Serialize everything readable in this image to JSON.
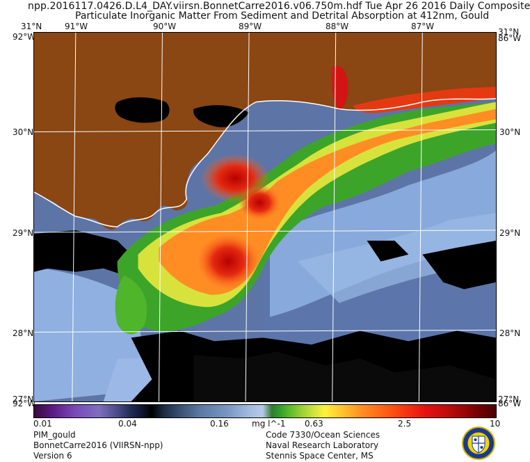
{
  "header": {
    "line1": "npp.2016117.0426.D.L4_DAY.viirsn.BonnetCarre2016.v06.750m.hdf     Tue Apr 26 2016 Daily Composite",
    "line2": "Particulate Inorganic Matter From Sediment and Detrital Absorption at 412nm, Gould"
  },
  "map": {
    "lon_labels": [
      "91°W",
      "90°W",
      "89°W",
      "88°W",
      "87°W"
    ],
    "lat_labels": [
      "30°N",
      "29°N",
      "28°N"
    ],
    "corner_top_left": "31°N",
    "corner_top_right": "31°N",
    "corner_bottom_left": "27°N",
    "corner_bottom_right": "27°N",
    "corner_top_left_lon": "92°W",
    "corner_top_right_lon": "86°W",
    "corner_bottom_left_lon": "92°W",
    "corner_bottom_right_lon": "86°W",
    "colors": {
      "land": "#8a4613",
      "no_data": "#000000",
      "clear_water": "#8fb0dc",
      "grid": "#ffffff"
    }
  },
  "colorbar": {
    "ticks": [
      "0.01",
      "0.04",
      "0.16",
      "0.63",
      "2.5",
      "10"
    ],
    "unit": "mg l^-1",
    "scale": "log"
  },
  "footer": {
    "left": [
      "PIM_gould",
      "BonnetCarre2016 (VIIRSN-npp)",
      "Version 6"
    ],
    "right": [
      "Code 7330/Ocean Sciences",
      "Naval Research Laboratory",
      "Stennis Space Center, MS"
    ]
  },
  "logo": {
    "name": "naval-research-laboratory-seal"
  }
}
